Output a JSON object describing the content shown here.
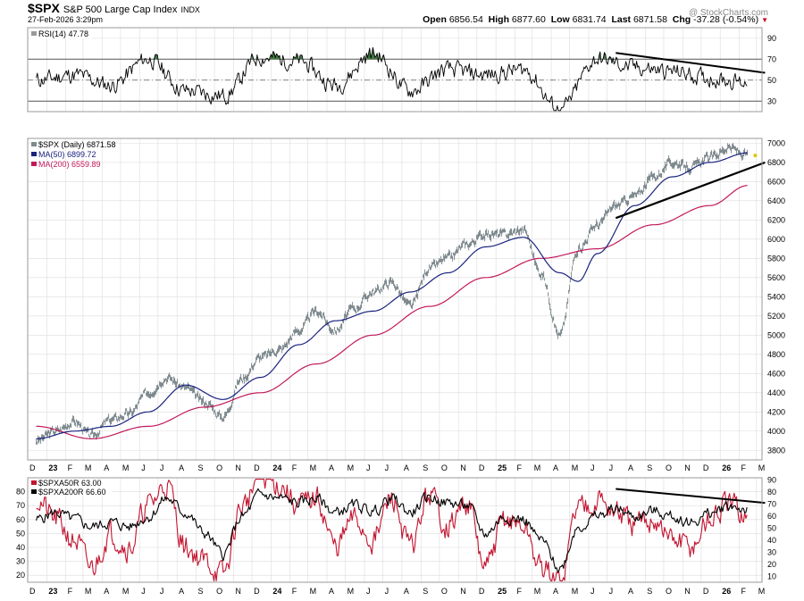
{
  "header": {
    "symbol": "$SPX",
    "name": "S&P 500 Large Cap Index",
    "exchange": "INDX",
    "datetime": "27-Feb-2026 3:29pm",
    "watermark": "@ StockCharts.com",
    "open_label": "Open",
    "open": "6856.54",
    "high_label": "High",
    "high": "6877.60",
    "low_label": "Low",
    "low": "6831.74",
    "last_label": "Last",
    "last": "6871.58",
    "chg_label": "Chg",
    "chg": "-37.28 (-0.54%)",
    "down_arrow": "▼"
  },
  "colors": {
    "price": "#7f8a8f",
    "ma50": "#1a237e",
    "ma200": "#c2185b",
    "pctA50": "#c2132f",
    "pctA200": "#000000",
    "rsi": "#000000",
    "overbought_fill": "#3d7a3d",
    "grid": "#dcdcdc",
    "trend": "#000000"
  },
  "chart_data": [
    {
      "type": "line",
      "panel": "RSI",
      "legend": [
        "RSI(14) 47.78"
      ],
      "ylim": [
        20,
        100
      ],
      "yticks": [
        30,
        50,
        70,
        90
      ],
      "reference_lines": [
        30,
        50,
        70
      ],
      "series": [
        {
          "name": "RSI(14)",
          "x": [
            "2022-12",
            "2023-02",
            "2023-04",
            "2023-06",
            "2023-08",
            "2023-10",
            "2023-12",
            "2024-02",
            "2024-04",
            "2024-06",
            "2024-08",
            "2024-10",
            "2024-12",
            "2025-02",
            "2025-04",
            "2025-06",
            "2025-08",
            "2025-10",
            "2025-12",
            "2026-02"
          ],
          "values": [
            50,
            55,
            45,
            70,
            40,
            35,
            72,
            68,
            45,
            75,
            40,
            60,
            55,
            60,
            22,
            70,
            62,
            58,
            52,
            48
          ]
        }
      ],
      "trendline": {
        "from": [
          "2025-07",
          76
        ],
        "to": [
          "2026-03",
          57
        ]
      }
    },
    {
      "type": "line",
      "panel": "Price",
      "legend": [
        "$SPX (Daily) 6871.58",
        "MA(50) 6899.72",
        "MA(200) 6559.89"
      ],
      "ylim": [
        3700,
        7050
      ],
      "yticks": [
        3800,
        4000,
        4200,
        4400,
        4600,
        4800,
        5000,
        5200,
        5400,
        5600,
        5800,
        6000,
        6200,
        6400,
        6600,
        6800,
        7000
      ],
      "x_tick_labels": [
        "D",
        "23",
        "F",
        "M",
        "A",
        "M",
        "J",
        "J",
        "A",
        "S",
        "O",
        "N",
        "D",
        "24",
        "F",
        "M",
        "A",
        "M",
        "J",
        "J",
        "A",
        "S",
        "O",
        "N",
        "D",
        "25",
        "F",
        "M",
        "A",
        "M",
        "J",
        "J",
        "A",
        "S",
        "O",
        "N",
        "D",
        "26",
        "F",
        "M"
      ],
      "series": [
        {
          "name": "$SPX (Daily)",
          "x": [
            "2022-12",
            "2023-01",
            "2023-02",
            "2023-03",
            "2023-04",
            "2023-05",
            "2023-06",
            "2023-07",
            "2023-08",
            "2023-09",
            "2023-10",
            "2023-11",
            "2023-12",
            "2024-01",
            "2024-02",
            "2024-03",
            "2024-04",
            "2024-05",
            "2024-06",
            "2024-07",
            "2024-08",
            "2024-09",
            "2024-10",
            "2024-11",
            "2024-12",
            "2025-01",
            "2025-02",
            "2025-03",
            "2025-04",
            "2025-05",
            "2025-06",
            "2025-07",
            "2025-08",
            "2025-09",
            "2025-10",
            "2025-11",
            "2025-12",
            "2026-01",
            "2026-02"
          ],
          "values": [
            3900,
            4000,
            4100,
            3950,
            4120,
            4180,
            4400,
            4560,
            4450,
            4300,
            4150,
            4550,
            4770,
            4850,
            5050,
            5250,
            5050,
            5280,
            5450,
            5550,
            5300,
            5700,
            5800,
            5950,
            6050,
            6050,
            6100,
            5650,
            5000,
            5900,
            6150,
            6350,
            6450,
            6650,
            6800,
            6750,
            6850,
            6950,
            6872
          ]
        },
        {
          "name": "MA(50)",
          "x": [
            "2022-12",
            "2023-02",
            "2023-04",
            "2023-06",
            "2023-08",
            "2023-10",
            "2023-12",
            "2024-02",
            "2024-04",
            "2024-06",
            "2024-08",
            "2024-10",
            "2024-12",
            "2025-02",
            "2025-04",
            "2025-05",
            "2025-06",
            "2025-08",
            "2025-10",
            "2025-12",
            "2026-02"
          ],
          "values": [
            3920,
            4000,
            4050,
            4200,
            4480,
            4330,
            4560,
            4900,
            5150,
            5250,
            5450,
            5650,
            5920,
            6020,
            5650,
            5560,
            5850,
            6350,
            6650,
            6800,
            6900
          ]
        },
        {
          "name": "MA(200)",
          "x": [
            "2022-12",
            "2023-03",
            "2023-06",
            "2023-09",
            "2023-12",
            "2024-03",
            "2024-06",
            "2024-09",
            "2024-12",
            "2025-03",
            "2025-06",
            "2025-09",
            "2025-12",
            "2026-02"
          ],
          "values": [
            4050,
            3920,
            4050,
            4250,
            4400,
            4700,
            5000,
            5300,
            5600,
            5800,
            5900,
            6150,
            6350,
            6560
          ]
        }
      ],
      "trendline": {
        "from": [
          "2025-07",
          6220
        ],
        "to": [
          "2026-03",
          6800
        ]
      }
    },
    {
      "type": "line",
      "panel": "Breadth",
      "legend": [
        "$SPXA50R 63.00",
        "$SPXA200R 66.60"
      ],
      "ylim_left": [
        15,
        90
      ],
      "yticks_left": [
        20,
        30,
        40,
        50,
        60,
        70,
        80
      ],
      "yticks_right": [
        10,
        20,
        30,
        40,
        50,
        60,
        70,
        80,
        90
      ],
      "x_tick_labels": [
        "D",
        "23",
        "F",
        "M",
        "A",
        "M",
        "J",
        "J",
        "A",
        "S",
        "O",
        "N",
        "D",
        "24",
        "F",
        "M",
        "A",
        "M",
        "J",
        "J",
        "A",
        "S",
        "O",
        "N",
        "D",
        "25",
        "F",
        "M",
        "A",
        "M",
        "J",
        "J",
        "A",
        "S",
        "O",
        "N",
        "D",
        "26",
        "F",
        "M"
      ],
      "series": [
        {
          "name": "$SPXA50R",
          "x": [
            "2022-12",
            "2023-01",
            "2023-02",
            "2023-03",
            "2023-04",
            "2023-05",
            "2023-06",
            "2023-07",
            "2023-08",
            "2023-09",
            "2023-10",
            "2023-11",
            "2023-12",
            "2024-01",
            "2024-02",
            "2024-03",
            "2024-04",
            "2024-05",
            "2024-06",
            "2024-07",
            "2024-08",
            "2024-09",
            "2024-10",
            "2024-11",
            "2024-12",
            "2025-01",
            "2025-02",
            "2025-03",
            "2025-04",
            "2025-05",
            "2025-06",
            "2025-07",
            "2025-08",
            "2025-09",
            "2025-10",
            "2025-11",
            "2025-12",
            "2026-01",
            "2026-02"
          ],
          "values": [
            75,
            60,
            45,
            25,
            50,
            40,
            70,
            85,
            40,
            30,
            20,
            70,
            90,
            85,
            70,
            75,
            40,
            60,
            45,
            75,
            40,
            78,
            55,
            72,
            25,
            60,
            55,
            25,
            15,
            70,
            75,
            65,
            55,
            60,
            45,
            40,
            60,
            70,
            63
          ]
        },
        {
          "name": "$SPXA200R",
          "x": [
            "2022-12",
            "2023-01",
            "2023-02",
            "2023-03",
            "2023-04",
            "2023-05",
            "2023-06",
            "2023-07",
            "2023-08",
            "2023-09",
            "2023-10",
            "2023-11",
            "2023-12",
            "2024-01",
            "2024-02",
            "2024-03",
            "2024-04",
            "2024-05",
            "2024-06",
            "2024-07",
            "2024-08",
            "2024-09",
            "2024-10",
            "2024-11",
            "2024-12",
            "2025-01",
            "2025-02",
            "2025-03",
            "2025-04",
            "2025-05",
            "2025-06",
            "2025-07",
            "2025-08",
            "2025-09",
            "2025-10",
            "2025-11",
            "2025-12",
            "2026-01",
            "2026-02"
          ],
          "values": [
            60,
            65,
            60,
            55,
            58,
            55,
            62,
            75,
            65,
            50,
            35,
            62,
            78,
            75,
            72,
            75,
            65,
            70,
            66,
            75,
            65,
            76,
            72,
            70,
            50,
            62,
            60,
            45,
            25,
            55,
            62,
            68,
            62,
            66,
            62,
            58,
            64,
            70,
            67
          ]
        }
      ],
      "trendline": {
        "from": [
          "2025-07",
          82
        ],
        "to": [
          "2026-03",
          72
        ]
      }
    }
  ]
}
